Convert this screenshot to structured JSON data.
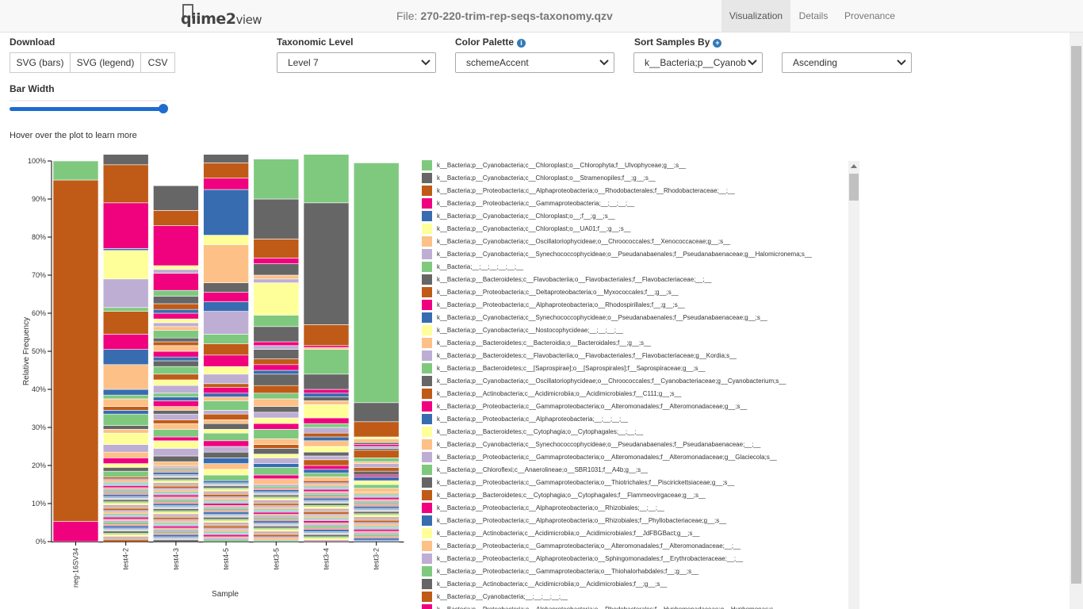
{
  "header": {
    "logo_prefix": "qiime2",
    "logo_suffix": "view",
    "file_label": "File:",
    "file_name": "270-220-trim-rep-seqs-taxonomy.qzv",
    "tabs": [
      "Visualization",
      "Details",
      "Provenance"
    ]
  },
  "controls": {
    "download_label": "Download",
    "download_buttons": [
      "SVG (bars)",
      "SVG (legend)",
      "CSV"
    ],
    "taxonomic_level_label": "Taxonomic Level",
    "taxonomic_level_value": "Level 7",
    "color_palette_label": "Color Palette",
    "color_palette_value": "schemeAccent",
    "sort_label": "Sort Samples By",
    "sort_value": "k__Bacteria;p__Cyanobacteria",
    "sort_order_value": "Ascending",
    "bar_width_label": "Bar Width",
    "bar_width_value": 1.0,
    "hover_hint": "Hover over the plot to learn more"
  },
  "colors": {
    "palette": [
      "#7fc97f",
      "#666666",
      "#bf5b17",
      "#f0027f",
      "#386cb0",
      "#ffff99",
      "#fdc086",
      "#beaed4"
    ],
    "accent": "#337ab7",
    "slider": "#1e6ccf"
  },
  "chart_data": {
    "type": "bar",
    "stacked": true,
    "title": "",
    "xlabel": "Sample",
    "ylabel": "Relative Frequency",
    "ylim": [
      0,
      1
    ],
    "yticks": [
      "0%",
      "10%",
      "20%",
      "30%",
      "40%",
      "50%",
      "60%",
      "70%",
      "80%",
      "90%",
      "100%"
    ],
    "categories": [
      "neg-16SV34",
      "test4-2",
      "test4-3",
      "test4-5",
      "test3-5",
      "test3-4",
      "test3-2"
    ],
    "samples": [
      {
        "name": "neg-16SV34",
        "segments": [
          [
            3,
            0.053
          ],
          [
            2,
            0.897
          ],
          [
            0,
            0.05
          ]
        ]
      },
      {
        "name": "test4-2",
        "segments": [
          [
            9,
            0.17
          ],
          [
            0,
            0.015
          ],
          [
            1,
            0.01
          ],
          [
            5,
            0.01
          ],
          [
            3,
            0.015
          ],
          [
            6,
            0.015
          ],
          [
            7,
            0.02
          ],
          [
            5,
            0.03
          ],
          [
            6,
            0.01
          ],
          [
            1,
            0.01
          ],
          [
            0,
            0.03
          ],
          [
            4,
            0.01
          ],
          [
            2,
            0.01
          ],
          [
            6,
            0.02
          ],
          [
            0,
            0.01
          ],
          [
            4,
            0.015
          ],
          [
            6,
            0.065
          ],
          [
            4,
            0.04
          ],
          [
            3,
            0.04
          ],
          [
            2,
            0.06
          ],
          [
            0,
            0.01
          ],
          [
            7,
            0.075
          ],
          [
            5,
            0.075
          ],
          [
            4,
            0.005
          ],
          [
            3,
            0.12
          ],
          [
            2,
            0.1
          ],
          [
            1,
            0.03
          ]
        ]
      },
      {
        "name": "test4-3",
        "segments": [
          [
            9,
            0.2
          ],
          [
            6,
            0.01
          ],
          [
            1,
            0.015
          ],
          [
            7,
            0.02
          ],
          [
            5,
            0.02
          ],
          [
            3,
            0.01
          ],
          [
            0,
            0.02
          ],
          [
            6,
            0.015
          ],
          [
            2,
            0.01
          ],
          [
            7,
            0.015
          ],
          [
            1,
            0.01
          ],
          [
            6,
            0.01
          ],
          [
            3,
            0.015
          ],
          [
            4,
            0.01
          ],
          [
            0,
            0.01
          ],
          [
            7,
            0.02
          ],
          [
            5,
            0.015
          ],
          [
            2,
            0.015
          ],
          [
            0,
            0.02
          ],
          [
            1,
            0.015
          ],
          [
            4,
            0.01
          ],
          [
            3,
            0.015
          ],
          [
            6,
            0.015
          ],
          [
            2,
            0.01
          ],
          [
            1,
            0.01
          ],
          [
            0,
            0.02
          ],
          [
            6,
            0.01
          ],
          [
            7,
            0.01
          ],
          [
            5,
            0.01
          ],
          [
            3,
            0.015
          ],
          [
            4,
            0.01
          ],
          [
            2,
            0.015
          ],
          [
            1,
            0.02
          ],
          [
            0,
            0.015
          ],
          [
            3,
            0.045
          ],
          [
            7,
            0.01
          ],
          [
            5,
            0.01
          ],
          [
            3,
            0.105
          ],
          [
            2,
            0.04
          ],
          [
            1,
            0.065
          ]
        ]
      },
      {
        "name": "test4-5",
        "segments": [
          [
            9,
            0.16
          ],
          [
            0,
            0.015
          ],
          [
            5,
            0.015
          ],
          [
            6,
            0.015
          ],
          [
            4,
            0.015
          ],
          [
            1,
            0.015
          ],
          [
            7,
            0.015
          ],
          [
            3,
            0.015
          ],
          [
            0,
            0.02
          ],
          [
            5,
            0.01
          ],
          [
            1,
            0.015
          ],
          [
            6,
            0.01
          ],
          [
            2,
            0.015
          ],
          [
            7,
            0.01
          ],
          [
            0,
            0.025
          ],
          [
            6,
            0.01
          ],
          [
            4,
            0.01
          ],
          [
            3,
            0.015
          ],
          [
            2,
            0.01
          ],
          [
            7,
            0.025
          ],
          [
            5,
            0.02
          ],
          [
            3,
            0.03
          ],
          [
            2,
            0.03
          ],
          [
            0,
            0.025
          ],
          [
            7,
            0.06
          ],
          [
            4,
            0.025
          ],
          [
            3,
            0.025
          ],
          [
            1,
            0.025
          ],
          [
            6,
            0.1
          ],
          [
            5,
            0.025
          ],
          [
            4,
            0.12
          ],
          [
            3,
            0.03
          ],
          [
            2,
            0.04
          ],
          [
            1,
            0.025
          ]
        ]
      },
      {
        "name": "test3-5",
        "segments": [
          [
            9,
            0.15
          ],
          [
            6,
            0.015
          ],
          [
            3,
            0.01
          ],
          [
            0,
            0.02
          ],
          [
            4,
            0.01
          ],
          [
            7,
            0.015
          ],
          [
            5,
            0.01
          ],
          [
            1,
            0.015
          ],
          [
            2,
            0.01
          ],
          [
            6,
            0.015
          ],
          [
            0,
            0.025
          ],
          [
            3,
            0.015
          ],
          [
            5,
            0.015
          ],
          [
            7,
            0.015
          ],
          [
            1,
            0.015
          ],
          [
            6,
            0.02
          ],
          [
            0,
            0.015
          ],
          [
            2,
            0.02
          ],
          [
            1,
            0.03
          ],
          [
            4,
            0.01
          ],
          [
            3,
            0.015
          ],
          [
            2,
            0.015
          ],
          [
            1,
            0.025
          ],
          [
            7,
            0.01
          ],
          [
            3,
            0.01
          ],
          [
            1,
            0.04
          ],
          [
            0,
            0.03
          ],
          [
            5,
            0.085
          ],
          [
            7,
            0.01
          ],
          [
            6,
            0.01
          ],
          [
            1,
            0.03
          ],
          [
            3,
            0.015
          ],
          [
            2,
            0.05
          ],
          [
            1,
            0.105
          ],
          [
            0,
            0.105
          ]
        ]
      },
      {
        "name": "test3-4",
        "segments": [
          [
            9,
            0.16
          ],
          [
            6,
            0.01
          ],
          [
            0,
            0.01
          ],
          [
            4,
            0.01
          ],
          [
            3,
            0.01
          ],
          [
            2,
            0.015
          ],
          [
            7,
            0.01
          ],
          [
            1,
            0.01
          ],
          [
            5,
            0.015
          ],
          [
            6,
            0.015
          ],
          [
            4,
            0.01
          ],
          [
            2,
            0.01
          ],
          [
            7,
            0.015
          ],
          [
            0,
            0.01
          ],
          [
            3,
            0.015
          ],
          [
            5,
            0.035
          ],
          [
            6,
            0.01
          ],
          [
            1,
            0.01
          ],
          [
            4,
            0.01
          ],
          [
            3,
            0.01
          ],
          [
            1,
            0.04
          ],
          [
            0,
            0.065
          ],
          [
            6,
            0.005
          ],
          [
            3,
            0.005
          ],
          [
            2,
            0.055
          ],
          [
            1,
            0.32
          ],
          [
            0,
            0.18
          ]
        ]
      },
      {
        "name": "test3-2",
        "segments": [
          [
            9,
            0.13
          ],
          [
            6,
            0.01
          ],
          [
            0,
            0.01
          ],
          [
            5,
            0.01
          ],
          [
            4,
            0.01
          ],
          [
            3,
            0.005
          ],
          [
            1,
            0.01
          ],
          [
            2,
            0.01
          ],
          [
            7,
            0.01
          ],
          [
            6,
            0.005
          ],
          [
            0,
            0.01
          ],
          [
            2,
            0.02
          ],
          [
            1,
            0.005
          ],
          [
            7,
            0.005
          ],
          [
            3,
            0.005
          ],
          [
            1,
            0.005
          ],
          [
            6,
            0.01
          ],
          [
            5,
            0.005
          ],
          [
            2,
            0.04
          ],
          [
            1,
            0.05
          ],
          [
            0,
            0.63
          ]
        ]
      }
    ]
  },
  "legend": {
    "items": [
      {
        "label": "k__Bacteria;p__Cyanobacteria;c__Chloroplast;o__Chlorophyta;f__Ulvophyceae;g__;s__",
        "color": "#7fc97f"
      },
      {
        "label": "k__Bacteria;p__Cyanobacteria;c__Chloroplast;o__Stramenopiles;f__;g__;s__",
        "color": "#666666"
      },
      {
        "label": "k__Bacteria;p__Proteobacteria;c__Alphaproteobacteria;o__Rhodobacterales;f__Rhodobacteraceae;__;__",
        "color": "#bf5b17"
      },
      {
        "label": "k__Bacteria;p__Proteobacteria;c__Gammaproteobacteria;__;__;__;__",
        "color": "#f0027f"
      },
      {
        "label": "k__Bacteria;p__Cyanobacteria;c__Chloroplast;o__;f__;g__;s__",
        "color": "#386cb0"
      },
      {
        "label": "k__Bacteria;p__Cyanobacteria;c__Chloroplast;o__UA01;f__;g__;s__",
        "color": "#ffff99"
      },
      {
        "label": "k__Bacteria;p__Cyanobacteria;c__Oscillatoriophycideae;o__Chroococcales;f__Xenococcaceae;g__;s__",
        "color": "#fdc086"
      },
      {
        "label": "k__Bacteria;p__Cyanobacteria;c__Synechococcophycideae;o__Pseudanabaenales;f__Pseudanabaenaceae;g__Halomicronema;s__",
        "color": "#beaed4"
      },
      {
        "label": "k__Bacteria;__;__;__;__;__;__",
        "color": "#7fc97f"
      },
      {
        "label": "k__Bacteria;p__Bacteroidetes;c__Flavobacteriia;o__Flavobacteriales;f__Flavobacteriaceae;__;__",
        "color": "#666666"
      },
      {
        "label": "k__Bacteria;p__Proteobacteria;c__Deltaproteobacteria;o__Myxococcales;f__;g__;s__",
        "color": "#bf5b17"
      },
      {
        "label": "k__Bacteria;p__Proteobacteria;c__Alphaproteobacteria;o__Rhodospirillales;f__;g__;s__",
        "color": "#f0027f"
      },
      {
        "label": "k__Bacteria;p__Cyanobacteria;c__Synechococcophycideae;o__Pseudanabaenales;f__Pseudanabaenaceae;g__;s__",
        "color": "#386cb0"
      },
      {
        "label": "k__Bacteria;p__Cyanobacteria;c__Nostocophycideae;__;__;__;__",
        "color": "#ffff99"
      },
      {
        "label": "k__Bacteria;p__Bacteroidetes;c__Bacteroidia;o__Bacteroidales;f__;g__;s__",
        "color": "#fdc086"
      },
      {
        "label": "k__Bacteria;p__Bacteroidetes;c__Flavobacteriia;o__Flavobacteriales;f__Flavobacteriaceae;g__Kordia;s__",
        "color": "#beaed4"
      },
      {
        "label": "k__Bacteria;p__Bacteroidetes;c__[Saprospirae];o__[Saprospirales];f__Saprospiraceae;g__;s__",
        "color": "#7fc97f"
      },
      {
        "label": "k__Bacteria;p__Cyanobacteria;c__Oscillatoriophycideae;o__Chroococcales;f__Cyanobacteriaceae;g__Cyanobacterium;s__",
        "color": "#666666"
      },
      {
        "label": "k__Bacteria;p__Actinobacteria;c__Acidimicrobiia;o__Acidimicrobiales;f__C111;g__;s__",
        "color": "#bf5b17"
      },
      {
        "label": "k__Bacteria;p__Proteobacteria;c__Gammaproteobacteria;o__Alteromonadales;f__Alteromonadaceae;g__;s__",
        "color": "#f0027f"
      },
      {
        "label": "k__Bacteria;p__Proteobacteria;c__Alphaproteobacteria;__;__;__;__",
        "color": "#386cb0"
      },
      {
        "label": "k__Bacteria;p__Bacteroidetes;c__Cytophagia;o__Cytophagales;__;__;__",
        "color": "#ffff99"
      },
      {
        "label": "k__Bacteria;p__Cyanobacteria;c__Synechococcophycideae;o__Pseudanabaenales;f__Pseudanabaenaceae;__;__",
        "color": "#fdc086"
      },
      {
        "label": "k__Bacteria;p__Proteobacteria;c__Gammaproteobacteria;o__Alteromonadales;f__Alteromonadaceae;g__Glaciecola;s__",
        "color": "#beaed4"
      },
      {
        "label": "k__Bacteria;p__Chloroflexi;c__Anaerolineae;o__SBR1031;f__A4b;g__;s__",
        "color": "#7fc97f"
      },
      {
        "label": "k__Bacteria;p__Proteobacteria;c__Gammaproteobacteria;o__Thiotrichales;f__Piscirickettsiaceae;g__;s__",
        "color": "#666666"
      },
      {
        "label": "k__Bacteria;p__Bacteroidetes;c__Cytophagia;o__Cytophagales;f__Flammeovirgaceae;g__;s__",
        "color": "#bf5b17"
      },
      {
        "label": "k__Bacteria;p__Proteobacteria;c__Alphaproteobacteria;o__Rhizobiales;__;__;__",
        "color": "#f0027f"
      },
      {
        "label": "k__Bacteria;p__Proteobacteria;c__Alphaproteobacteria;o__Rhizobiales;f__Phyllobacteriaceae;g__;s__",
        "color": "#386cb0"
      },
      {
        "label": "k__Bacteria;p__Actinobacteria;c__Acidimicrobiia;o__Acidimicrobiales;f__JdFBGBact;g__;s__",
        "color": "#ffff99"
      },
      {
        "label": "k__Bacteria;p__Proteobacteria;c__Gammaproteobacteria;o__Alteromonadales;f__Alteromonadaceae;__;__",
        "color": "#fdc086"
      },
      {
        "label": "k__Bacteria;p__Proteobacteria;c__Alphaproteobacteria;o__Sphingomonadales;f__Erythrobacteraceae;__;__",
        "color": "#beaed4"
      },
      {
        "label": "k__Bacteria;p__Proteobacteria;c__Gammaproteobacteria;o__Thiohalorhabdales;f__;g__;s__",
        "color": "#7fc97f"
      },
      {
        "label": "k__Bacteria;p__Actinobacteria;c__Acidimicrobiia;o__Acidimicrobiales;f__;g__;s__",
        "color": "#666666"
      },
      {
        "label": "k__Bacteria;p__Cyanobacteria;__;__;__;__;__",
        "color": "#bf5b17"
      },
      {
        "label": "k__Bacteria;p__Proteobacteria;c__Alphaproteobacteria;o__Rhodobacterales;f__Hyphomonadaceae;g__Hyphomonas;s__",
        "color": "#f0027f"
      }
    ]
  }
}
